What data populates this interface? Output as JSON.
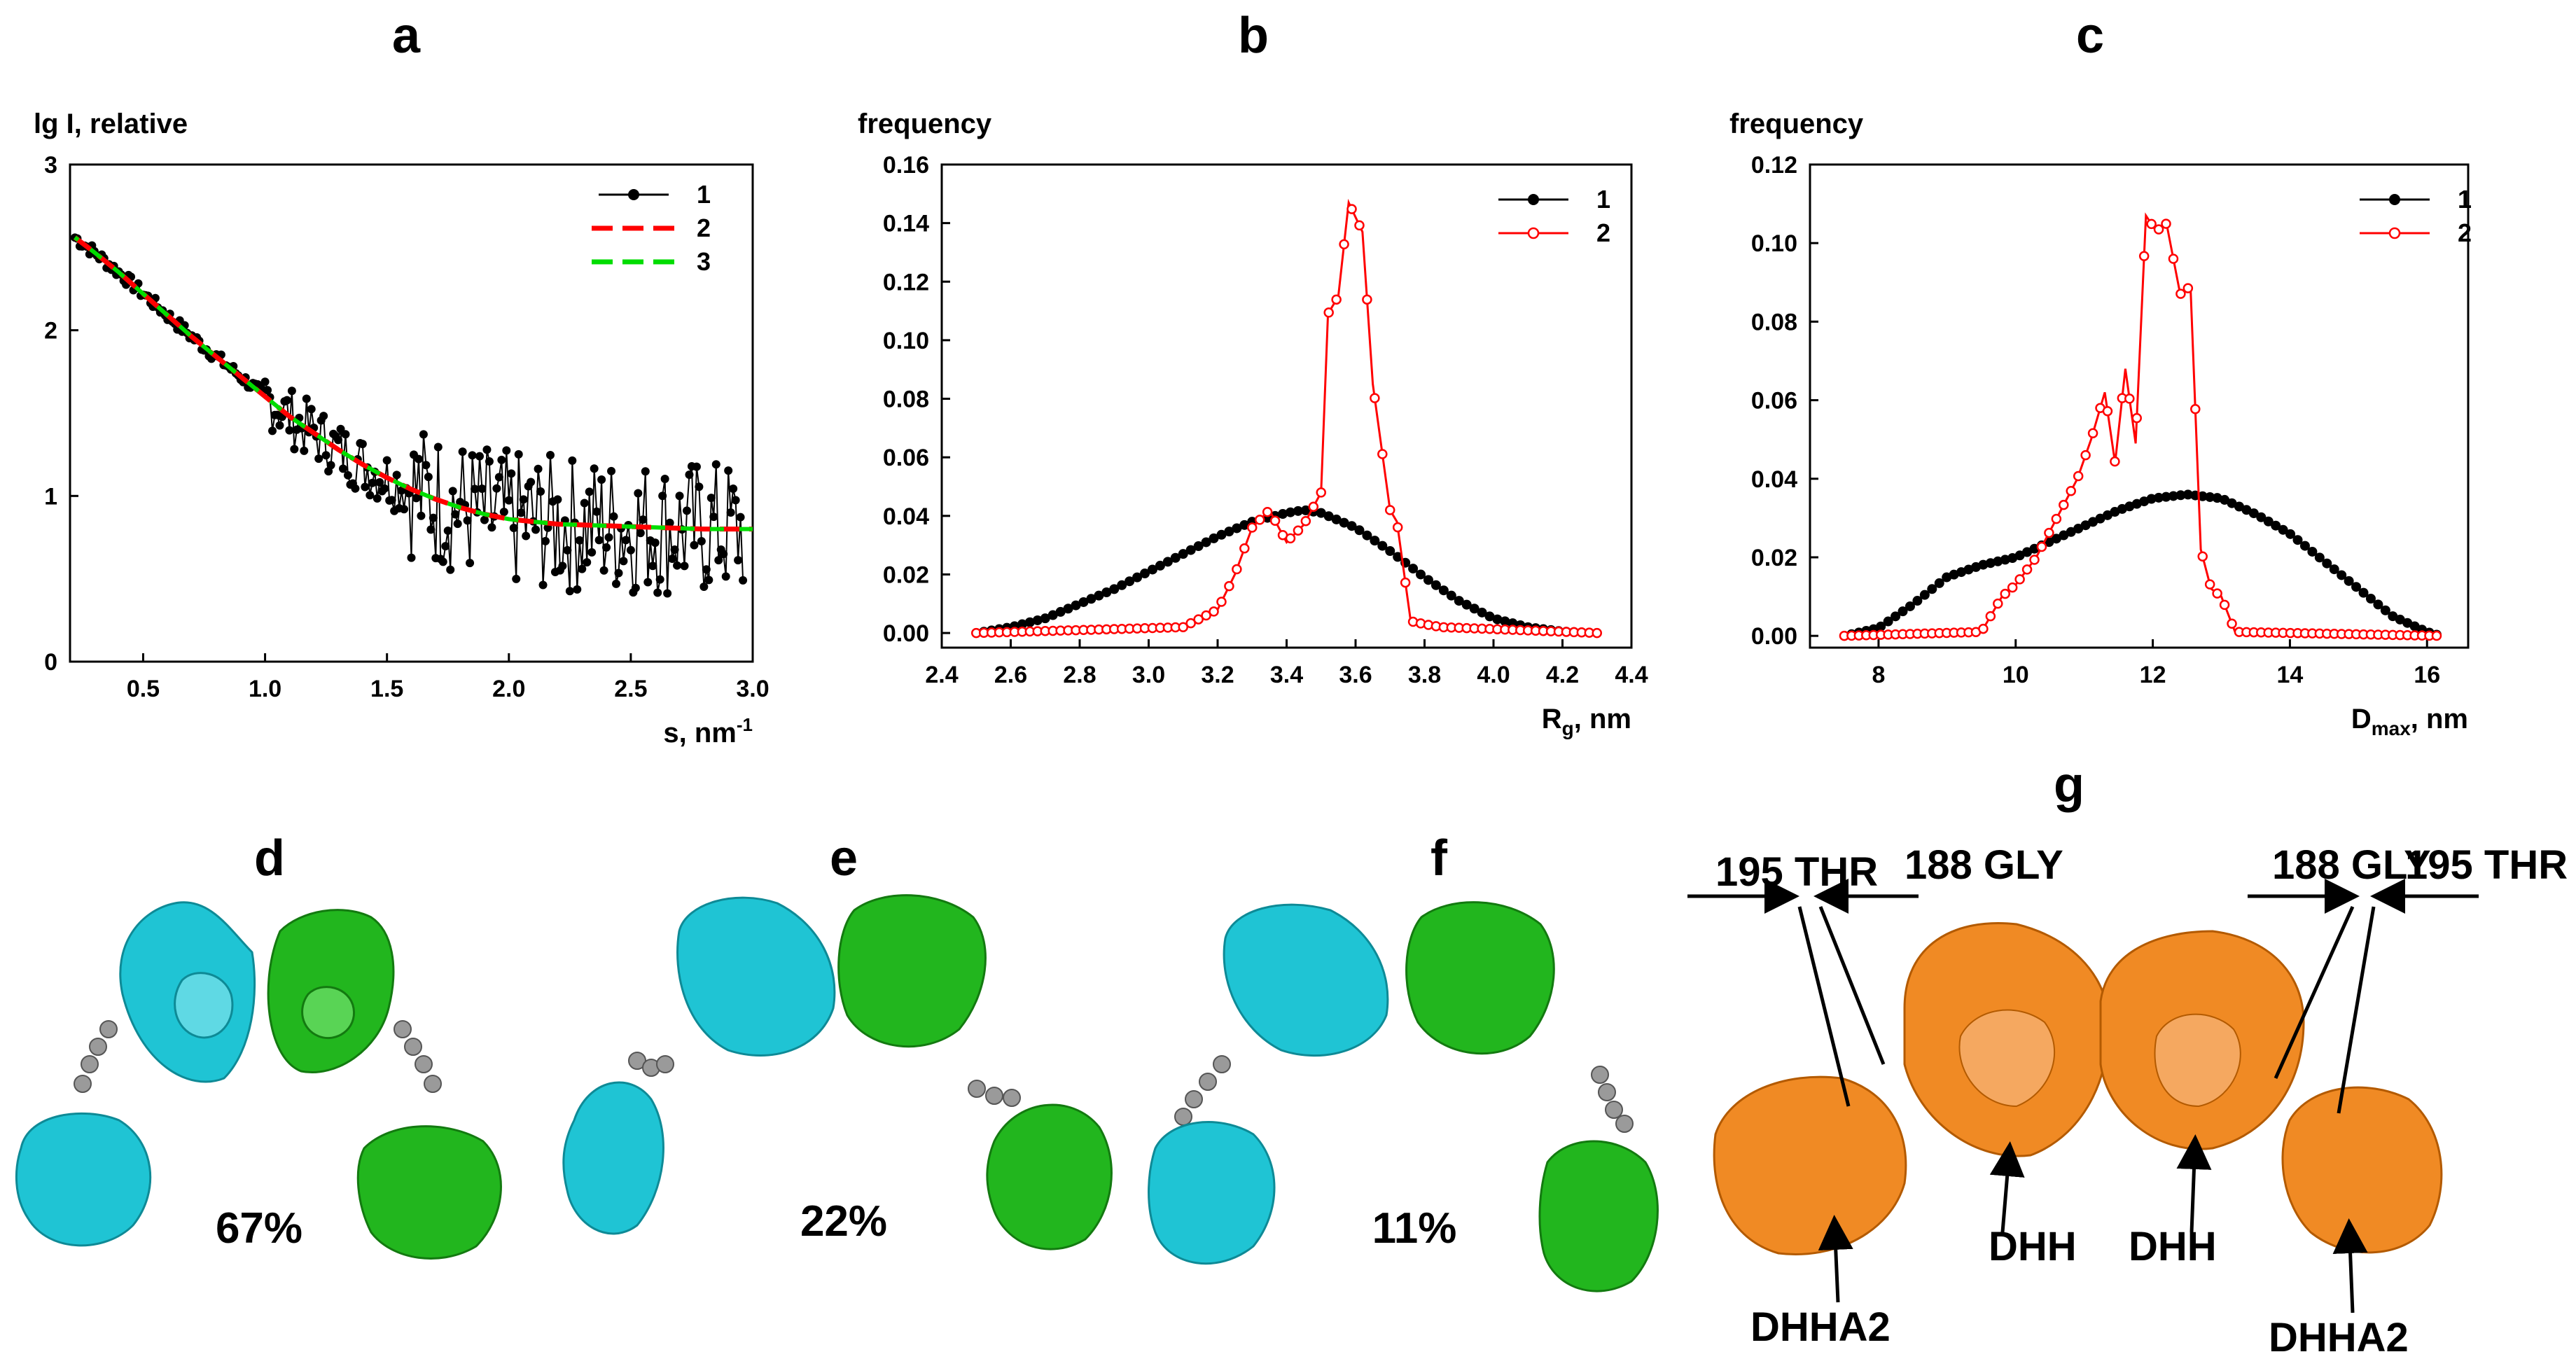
{
  "panel_labels": {
    "a": "a",
    "b": "b",
    "c": "c",
    "d": "d",
    "e": "e",
    "f": "f",
    "g": "g"
  },
  "colors": {
    "black": "#000000",
    "red": "#ff0000",
    "green": "#00dd00",
    "cyan": "#1fc4d4",
    "protein_green": "#22b61e",
    "orange": "#f08a24",
    "linker": "#9a9a9a"
  },
  "chart_data": [
    {
      "id": "a",
      "type": "line",
      "ylabel": "lg I, relative",
      "xlabel": "s, nm",
      "xlabel_sup": "-1",
      "xlim": [
        0.2,
        3.0
      ],
      "ylim": [
        0,
        3
      ],
      "xticks": [
        0.5,
        1.0,
        1.5,
        2.0,
        2.5,
        3.0
      ],
      "xtick_labels": [
        "0.5",
        "1.0",
        "1.5",
        "2.0",
        "2.5",
        "3.0"
      ],
      "yticks": [
        0,
        1,
        2,
        3
      ],
      "ytick_labels": [
        "0",
        "1",
        "2",
        "3"
      ],
      "legend": [
        "1",
        "2",
        "3"
      ],
      "fit_x": [
        0.22,
        0.3,
        0.4,
        0.5,
        0.6,
        0.7,
        0.8,
        0.9,
        1.0,
        1.1,
        1.2,
        1.3,
        1.4,
        1.5,
        1.6,
        1.7,
        1.8,
        1.9,
        2.0,
        2.2,
        2.4,
        2.6,
        2.8,
        3.0
      ],
      "fit_y": [
        2.56,
        2.47,
        2.35,
        2.22,
        2.09,
        1.96,
        1.84,
        1.72,
        1.6,
        1.48,
        1.38,
        1.28,
        1.19,
        1.11,
        1.04,
        0.98,
        0.93,
        0.89,
        0.86,
        0.83,
        0.82,
        0.81,
        0.8,
        0.8
      ],
      "series": [
        {
          "name": "1",
          "color": "#000000",
          "style": "experimental (noisy points)"
        },
        {
          "name": "2",
          "color": "#ff0000",
          "style": "dashed fit"
        },
        {
          "name": "3",
          "color": "#00dd00",
          "style": "dashed fit"
        }
      ]
    },
    {
      "id": "b",
      "type": "line",
      "ylabel": "frequency",
      "xlabel": "R",
      "xlabel_sub": "g",
      "xlabel_suffix": ", nm",
      "xlim": [
        2.4,
        4.4
      ],
      "ylim": [
        -0.005,
        0.16
      ],
      "xticks": [
        2.4,
        2.6,
        2.8,
        3.0,
        3.2,
        3.4,
        3.6,
        3.8,
        4.0,
        4.2,
        4.4
      ],
      "xtick_labels": [
        "2.4",
        "2.6",
        "2.8",
        "3.0",
        "3.2",
        "3.4",
        "3.6",
        "3.8",
        "4.0",
        "4.2",
        "4.4"
      ],
      "yticks": [
        0.0,
        0.02,
        0.04,
        0.06,
        0.08,
        0.1,
        0.12,
        0.14,
        0.16
      ],
      "ytick_labels": [
        "0.00",
        "0.02",
        "0.04",
        "0.06",
        "0.08",
        "0.10",
        "0.12",
        "0.14",
        "0.16"
      ],
      "legend": [
        "1",
        "2"
      ],
      "series": [
        {
          "name": "1",
          "color": "#000000",
          "x": [
            2.5,
            2.6,
            2.7,
            2.8,
            2.9,
            3.0,
            3.1,
            3.2,
            3.3,
            3.4,
            3.45,
            3.5,
            3.6,
            3.7,
            3.8,
            3.9,
            4.0,
            4.1,
            4.2,
            4.3
          ],
          "y": [
            0.0,
            0.002,
            0.005,
            0.01,
            0.015,
            0.021,
            0.027,
            0.033,
            0.038,
            0.041,
            0.042,
            0.041,
            0.036,
            0.028,
            0.019,
            0.011,
            0.005,
            0.002,
            0.0005,
            0.0
          ]
        },
        {
          "name": "2",
          "color": "#ff0000",
          "x": [
            2.5,
            3.1,
            3.2,
            3.25,
            3.3,
            3.35,
            3.4,
            3.45,
            3.5,
            3.52,
            3.55,
            3.58,
            3.62,
            3.65,
            3.7,
            3.72,
            3.76,
            3.8,
            3.85,
            4.3
          ],
          "y": [
            0.0,
            0.002,
            0.008,
            0.02,
            0.036,
            0.042,
            0.031,
            0.037,
            0.048,
            0.109,
            0.115,
            0.147,
            0.137,
            0.085,
            0.042,
            0.038,
            0.004,
            0.003,
            0.002,
            0.0
          ]
        }
      ]
    },
    {
      "id": "c",
      "type": "line",
      "ylabel": "frequency",
      "xlabel": "D",
      "xlabel_sub": "max",
      "xlabel_suffix": ", nm",
      "xlim": [
        7,
        16.6
      ],
      "ylim": [
        -0.003,
        0.12
      ],
      "xticks": [
        8,
        10,
        12,
        14,
        16
      ],
      "xtick_labels": [
        "8",
        "10",
        "12",
        "14",
        "16"
      ],
      "yticks": [
        0.0,
        0.02,
        0.04,
        0.06,
        0.08,
        0.1,
        0.12
      ],
      "ytick_labels": [
        "0.00",
        "0.02",
        "0.04",
        "0.06",
        "0.08",
        "0.10",
        "0.12"
      ],
      "legend": [
        "1",
        "2"
      ],
      "series": [
        {
          "name": "1",
          "color": "#000000",
          "x": [
            7.5,
            8.0,
            8.5,
            9.0,
            9.5,
            10.0,
            10.5,
            11.0,
            11.5,
            12.0,
            12.5,
            13.0,
            13.5,
            14.0,
            14.5,
            15.0,
            15.5,
            16.0,
            16.2
          ],
          "y": [
            0.0,
            0.002,
            0.008,
            0.015,
            0.018,
            0.02,
            0.024,
            0.028,
            0.032,
            0.035,
            0.036,
            0.035,
            0.031,
            0.026,
            0.019,
            0.012,
            0.005,
            0.001,
            0.0
          ]
        },
        {
          "name": "2",
          "color": "#ff0000",
          "x": [
            7.5,
            9.5,
            9.8,
            10.0,
            10.3,
            10.6,
            10.9,
            11.1,
            11.3,
            11.45,
            11.6,
            11.75,
            11.9,
            12.05,
            12.2,
            12.4,
            12.55,
            12.7,
            12.85,
            13.0,
            13.2,
            16.2
          ],
          "y": [
            0.0,
            0.001,
            0.01,
            0.013,
            0.02,
            0.03,
            0.04,
            0.05,
            0.062,
            0.044,
            0.068,
            0.049,
            0.107,
            0.103,
            0.105,
            0.087,
            0.089,
            0.022,
            0.012,
            0.01,
            0.001,
            0.0
          ]
        }
      ]
    }
  ],
  "structures": {
    "d_pct": "67%",
    "e_pct": "22%",
    "f_pct": "11%",
    "g_annotations": {
      "thr_left": "195 THR",
      "gly_left": "188 GLY",
      "gly_right": "188 GLY",
      "thr_right": "195 THR",
      "dhh_left": "DHH",
      "dhh_right": "DHH",
      "dhha2_left": "DHHA2",
      "dhha2_right": "DHHA2"
    }
  }
}
